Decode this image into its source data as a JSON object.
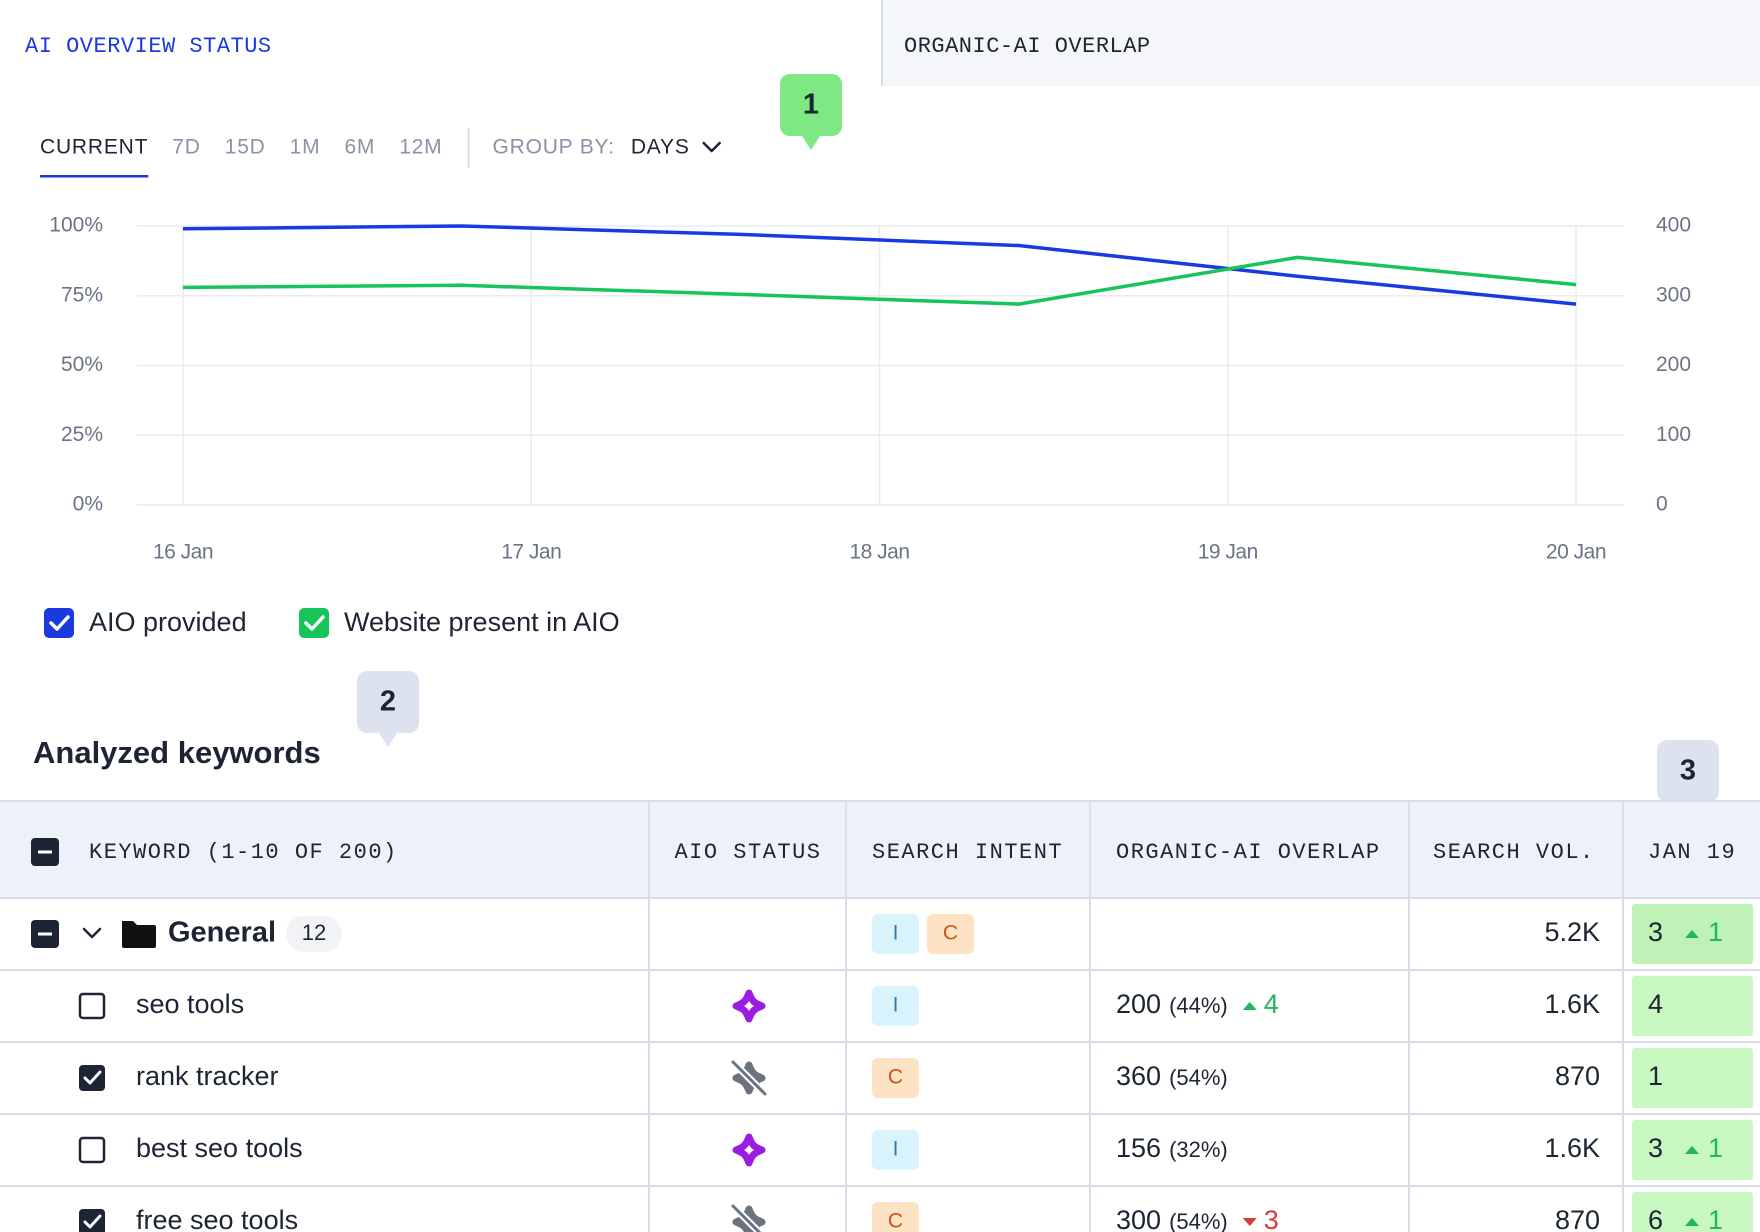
{
  "tabs": [
    {
      "label": "AI OVERVIEW STATUS",
      "active": true
    },
    {
      "label": "ORGANIC-AI OVERLAP",
      "active": false
    }
  ],
  "periods": [
    {
      "label": "CURRENT",
      "active": true
    },
    {
      "label": "7D",
      "active": false
    },
    {
      "label": "15D",
      "active": false
    },
    {
      "label": "1M",
      "active": false
    },
    {
      "label": "6M",
      "active": false
    },
    {
      "label": "12M",
      "active": false
    }
  ],
  "group_by": {
    "label": "GROUP BY:",
    "value": "DAYS"
  },
  "badges": [
    {
      "label": "1",
      "color": "#7ee882"
    },
    {
      "label": "2",
      "color": "#dde3ee"
    },
    {
      "label": "3",
      "color": "#dde3ee"
    }
  ],
  "chart_data": {
    "type": "line",
    "x": [
      16,
      16.8,
      17.6,
      18.4,
      19.2,
      20
    ],
    "xlim": [
      16,
      20
    ],
    "xticks": [
      {
        "value": 16,
        "label": "16 Jan"
      },
      {
        "value": 17,
        "label": "17 Jan"
      },
      {
        "value": 18,
        "label": "18 Jan"
      },
      {
        "value": 19,
        "label": "19 Jan"
      },
      {
        "value": 20,
        "label": "20 Jan"
      }
    ],
    "ylim": [
      0,
      100
    ],
    "yticks": [
      {
        "value": 0,
        "label": "0%"
      },
      {
        "value": 25,
        "label": "25%"
      },
      {
        "value": 50,
        "label": "50%"
      },
      {
        "value": 75,
        "label": "75%"
      },
      {
        "value": 100,
        "label": "100%"
      }
    ],
    "y2lim": [
      0,
      400
    ],
    "y2ticks": [
      0,
      100,
      200,
      300,
      400
    ],
    "grid": true,
    "series": [
      {
        "name": "AIO provided",
        "color": "#1a3ae0",
        "checked": true,
        "values": [
          99,
          100,
          97,
          93,
          82,
          72
        ]
      },
      {
        "name": "Website present in AIO",
        "color": "#16c45a",
        "checked": true,
        "axis": "y2",
        "values": [
          312,
          315,
          302,
          288,
          355,
          316
        ]
      }
    ]
  },
  "section_title": "Analyzed keywords",
  "table": {
    "columns": [
      "KEYWORD (1-10 OF 200)",
      "AIO STATUS",
      "SEARCH INTENT",
      "ORGANIC-AI OVERLAP",
      "SEARCH VOL.",
      "JAN 19"
    ],
    "group": {
      "keyword": "General",
      "count": 12,
      "intents": [
        {
          "label": "I",
          "color": "#2b7fa3",
          "bg": "#d8f3fb"
        },
        {
          "label": "C",
          "color": "#c4581a",
          "bg": "#fde2c4"
        }
      ],
      "search_vol": "5.2K",
      "jan19": 3,
      "jan19_change": 1,
      "jan19_trend": "up"
    },
    "rows": [
      {
        "keyword": "seo tools",
        "checked": false,
        "aio_present": true,
        "intents": [
          {
            "label": "I",
            "color": "#2b7fa3",
            "bg": "#d8f3fb"
          }
        ],
        "overlap": 200,
        "overlap_pct": "(44%)",
        "overlap_change": 4,
        "overlap_trend": "up",
        "search_vol": "1.6K",
        "jan19": 4
      },
      {
        "keyword": "rank tracker",
        "checked": true,
        "aio_present": false,
        "intents": [
          {
            "label": "C",
            "color": "#c4581a",
            "bg": "#fde2c4"
          }
        ],
        "overlap": 360,
        "overlap_pct": "(54%)",
        "search_vol": "870",
        "jan19": 1
      },
      {
        "keyword": "best seo tools",
        "checked": false,
        "aio_present": true,
        "intents": [
          {
            "label": "I",
            "color": "#2b7fa3",
            "bg": "#d8f3fb"
          }
        ],
        "overlap": 156,
        "overlap_pct": "(32%)",
        "search_vol": "1.6K",
        "jan19": 3,
        "jan19_change": 1,
        "jan19_trend": "up"
      },
      {
        "keyword": "free seo tools",
        "checked": true,
        "aio_present": false,
        "intents": [
          {
            "label": "C",
            "color": "#c4581a",
            "bg": "#fde2c4"
          }
        ],
        "overlap": 300,
        "overlap_pct": "(54%)",
        "overlap_change": 3,
        "overlap_trend": "down",
        "search_vol": "870",
        "jan19": 6,
        "jan19_change": 1,
        "jan19_trend": "up"
      }
    ]
  }
}
